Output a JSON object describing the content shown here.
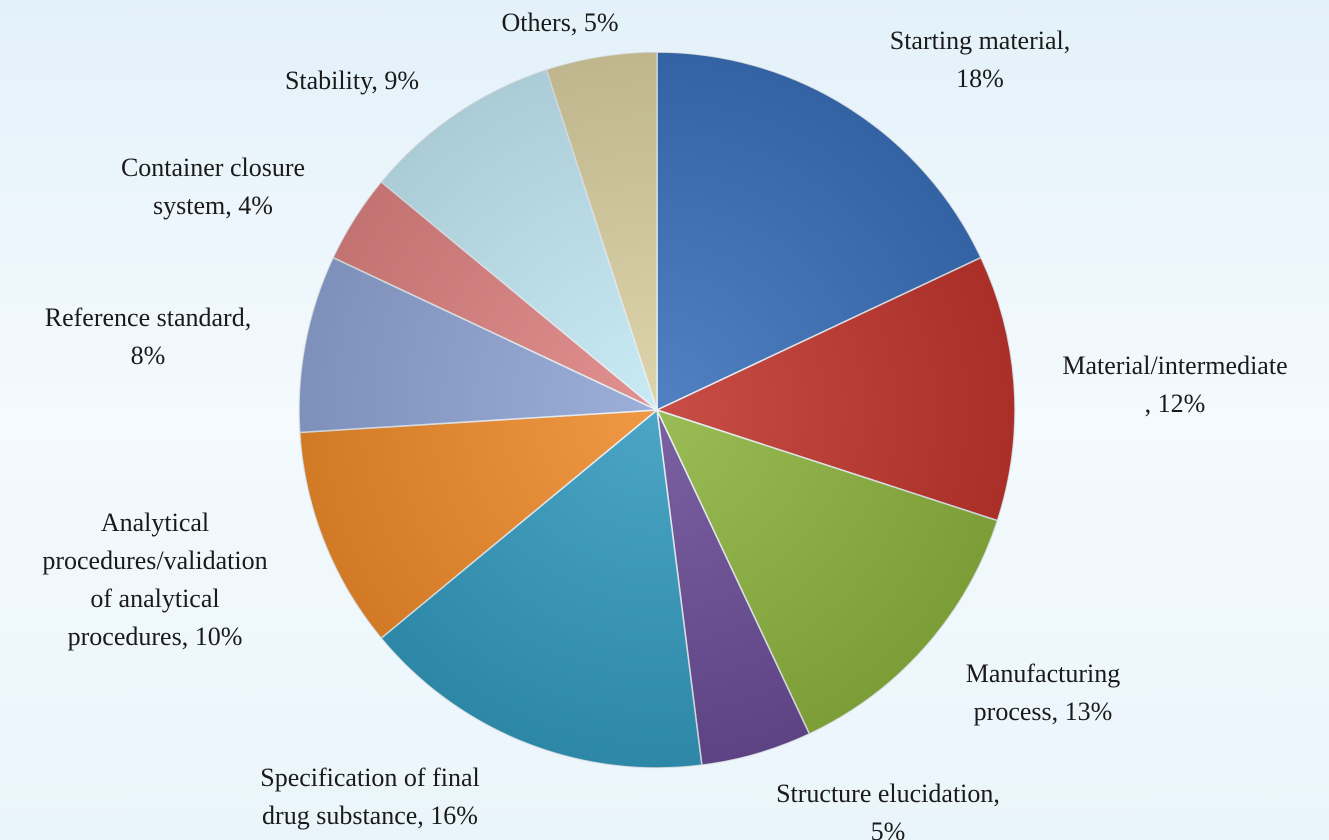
{
  "chart_data": {
    "type": "pie",
    "categories": [
      "Starting material,\n18%",
      "Material/intermediate\n, 12%",
      "Manufacturing\nprocess, 13%",
      "Structure elucidation,\n5%",
      "Specification of final\ndrug substance, 16%",
      "Analytical\nprocedures/validation\nof analytical\nprocedures, 10%",
      "Reference standard,\n8%",
      "Container closure\nsystem, 4%",
      "Stability, 9%",
      "Others, 5%"
    ],
    "values": [
      18,
      12,
      13,
      5,
      16,
      10,
      8,
      4,
      9,
      5
    ],
    "colors": [
      "#3a70ba",
      "#c0352d",
      "#8db33e",
      "#6a4c96",
      "#3399bd",
      "#ef8a2b",
      "#8fa4d4",
      "#de8282",
      "#c2e8f4",
      "#d9cfa1"
    ]
  }
}
